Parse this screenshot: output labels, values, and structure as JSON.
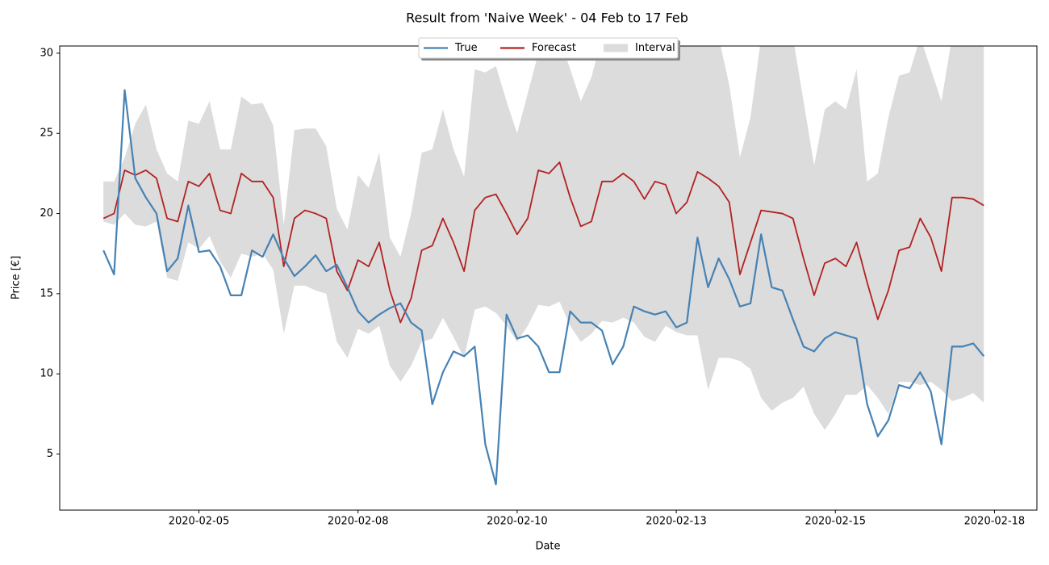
{
  "chart_data": {
    "type": "line",
    "title": "Result from 'Naive Week' - 04 Feb to 17 Feb",
    "x_label": "Date",
    "y_label": "Price [€]",
    "x": [
      "2020-02-04T00:00",
      "2020-02-04T04:00",
      "2020-02-04T08:00",
      "2020-02-04T12:00",
      "2020-02-04T16:00",
      "2020-02-04T20:00",
      "2020-02-05T00:00",
      "2020-02-05T04:00",
      "2020-02-05T08:00",
      "2020-02-05T12:00",
      "2020-02-05T16:00",
      "2020-02-05T20:00",
      "2020-02-06T00:00",
      "2020-02-06T04:00",
      "2020-02-06T08:00",
      "2020-02-06T12:00",
      "2020-02-06T16:00",
      "2020-02-06T20:00",
      "2020-02-07T00:00",
      "2020-02-07T04:00",
      "2020-02-07T08:00",
      "2020-02-07T12:00",
      "2020-02-07T16:00",
      "2020-02-07T20:00",
      "2020-02-08T00:00",
      "2020-02-08T04:00",
      "2020-02-08T08:00",
      "2020-02-08T12:00",
      "2020-02-08T16:00",
      "2020-02-08T20:00",
      "2020-02-09T00:00",
      "2020-02-09T04:00",
      "2020-02-09T08:00",
      "2020-02-09T12:00",
      "2020-02-09T16:00",
      "2020-02-09T20:00",
      "2020-02-10T00:00",
      "2020-02-10T04:00",
      "2020-02-10T08:00",
      "2020-02-10T12:00",
      "2020-02-10T16:00",
      "2020-02-10T20:00",
      "2020-02-11T00:00",
      "2020-02-11T04:00",
      "2020-02-11T08:00",
      "2020-02-11T12:00",
      "2020-02-11T16:00",
      "2020-02-11T20:00",
      "2020-02-12T00:00",
      "2020-02-12T04:00",
      "2020-02-12T08:00",
      "2020-02-12T12:00",
      "2020-02-12T16:00",
      "2020-02-12T20:00",
      "2020-02-13T00:00",
      "2020-02-13T04:00",
      "2020-02-13T08:00",
      "2020-02-13T12:00",
      "2020-02-13T16:00",
      "2020-02-13T20:00",
      "2020-02-14T00:00",
      "2020-02-14T04:00",
      "2020-02-14T08:00",
      "2020-02-14T12:00",
      "2020-02-14T16:00",
      "2020-02-14T20:00",
      "2020-02-15T00:00",
      "2020-02-15T04:00",
      "2020-02-15T08:00",
      "2020-02-15T12:00",
      "2020-02-15T16:00",
      "2020-02-15T20:00",
      "2020-02-16T00:00",
      "2020-02-16T04:00",
      "2020-02-16T08:00",
      "2020-02-16T12:00",
      "2020-02-16T16:00",
      "2020-02-16T20:00",
      "2020-02-17T00:00",
      "2020-02-17T04:00",
      "2020-02-17T08:00",
      "2020-02-17T12:00",
      "2020-02-17T16:00",
      "2020-02-17T20:00"
    ],
    "band": {
      "name": "Interval",
      "color": "#dcdcdc",
      "lower": [
        19.5,
        19.3,
        20,
        19.3,
        19.2,
        19.5,
        16,
        15.8,
        18.2,
        17.8,
        18.6,
        17,
        16,
        17.5,
        17.3,
        17.5,
        16.5,
        12.5,
        15.5,
        15.5,
        15.2,
        15,
        12,
        11,
        12.8,
        12.5,
        13,
        10.5,
        9.5,
        10.5,
        12,
        12.2,
        13.5,
        12.3,
        11,
        14,
        14.2,
        13.8,
        13,
        12,
        13,
        14.3,
        14.2,
        14.5,
        13,
        12,
        12.5,
        13.3,
        13.2,
        13.5,
        13.2,
        12.3,
        12,
        13,
        12.6,
        12.4,
        12.4,
        9,
        11,
        11,
        10.8,
        10.3,
        8.5,
        7.7,
        8.2,
        8.5,
        9.2,
        7.5,
        6.5,
        7.5,
        8.7,
        8.7,
        9.3,
        8.5,
        7.5,
        9.5,
        9.5,
        9.3,
        9.5,
        9,
        8.3,
        8.5,
        8.8,
        8.2
      ],
      "upper": [
        22,
        22,
        23.5,
        25.6,
        26.8,
        24,
        22.5,
        22,
        25.8,
        25.6,
        27,
        24,
        24,
        27.3,
        26.8,
        26.9,
        25.5,
        19.3,
        25.2,
        25.3,
        25.3,
        24.2,
        20.3,
        19,
        22.4,
        21.6,
        23.8,
        18.5,
        17.3,
        20,
        23.8,
        24,
        26.5,
        24,
        22.3,
        29,
        28.8,
        29.2,
        27,
        25,
        27.5,
        30,
        31,
        31,
        29,
        27,
        28.5,
        31,
        31,
        31,
        31,
        31,
        31,
        31,
        31,
        31,
        31,
        31,
        31,
        28,
        23.5,
        26,
        31,
        31,
        31,
        31,
        27,
        23,
        26.5,
        27,
        26.5,
        29,
        22,
        22.5,
        26,
        28.6,
        28.8,
        31,
        29,
        27,
        31,
        31,
        31,
        31
      ]
    },
    "series": [
      {
        "name": "Forecast",
        "color": "#b22222",
        "values": [
          19.7,
          20,
          22.7,
          22.4,
          22.7,
          22.2,
          19.7,
          19.5,
          22,
          21.7,
          22.5,
          20.2,
          20,
          22.5,
          22,
          22,
          21,
          16.7,
          19.7,
          20.2,
          20,
          19.7,
          16.4,
          15.2,
          17.1,
          16.7,
          18.2,
          15.2,
          13.2,
          14.7,
          17.7,
          18,
          19.7,
          18.2,
          16.4,
          20.2,
          21,
          21.2,
          20,
          18.7,
          19.7,
          22.7,
          22.5,
          23.2,
          21,
          19.2,
          19.5,
          22,
          22,
          22.5,
          22,
          20.9,
          22,
          21.8,
          20,
          20.7,
          22.6,
          22.2,
          21.7,
          20.7,
          16.2,
          18.2,
          20.2,
          20.1,
          20,
          19.7,
          17.2,
          14.9,
          16.9,
          17.2,
          16.7,
          18.2,
          15.7,
          13.4,
          15.2,
          17.7,
          17.9,
          19.7,
          18.5,
          16.4,
          21,
          21,
          20.9,
          20.5
        ]
      },
      {
        "name": "True",
        "color": "#4682b4",
        "values": [
          17.7,
          16.2,
          27.7,
          22.2,
          21,
          20,
          16.4,
          17.2,
          20.5,
          17.6,
          17.7,
          16.7,
          14.9,
          14.9,
          17.7,
          17.3,
          18.7,
          17.2,
          16.1,
          16.7,
          17.4,
          16.4,
          16.8,
          15.4,
          13.9,
          13.2,
          13.7,
          14.1,
          14.4,
          13.2,
          12.7,
          8.1,
          10.1,
          11.4,
          11.1,
          11.7,
          5.6,
          3.1,
          13.7,
          12.2,
          12.4,
          11.7,
          10.1,
          10.1,
          13.9,
          13.2,
          13.2,
          12.7,
          10.6,
          11.7,
          14.2,
          13.9,
          13.7,
          13.9,
          12.9,
          13.2,
          18.5,
          15.4,
          17.2,
          15.9,
          14.2,
          14.4,
          18.7,
          15.4,
          15.2,
          13.4,
          11.7,
          11.4,
          12.2,
          12.6,
          12.4,
          12.2,
          8.1,
          6.1,
          7.1,
          9.3,
          9.1,
          10.1,
          8.9,
          5.6,
          11.7,
          11.7,
          11.9,
          11.1
        ]
      }
    ],
    "legend_order": [
      "True",
      "Forecast",
      "Interval"
    ],
    "legend": "upper center",
    "xlim": [
      "2020-02-03T07:30",
      "2020-02-18T16:00"
    ],
    "xticks": [
      {
        "value": "2020-02-05T12:00",
        "label": "2020-02-05"
      },
      {
        "value": "2020-02-08T00:00",
        "label": "2020-02-08"
      },
      {
        "value": "2020-02-10T12:00",
        "label": "2020-02-10"
      },
      {
        "value": "2020-02-13T00:00",
        "label": "2020-02-13"
      },
      {
        "value": "2020-02-15T12:00",
        "label": "2020-02-15"
      },
      {
        "value": "2020-02-18T00:00",
        "label": "2020-02-18"
      }
    ],
    "ylim": [
      1.5,
      30.45
    ],
    "yticks": [
      5,
      10,
      15,
      20,
      25,
      30
    ],
    "grid": false
  }
}
